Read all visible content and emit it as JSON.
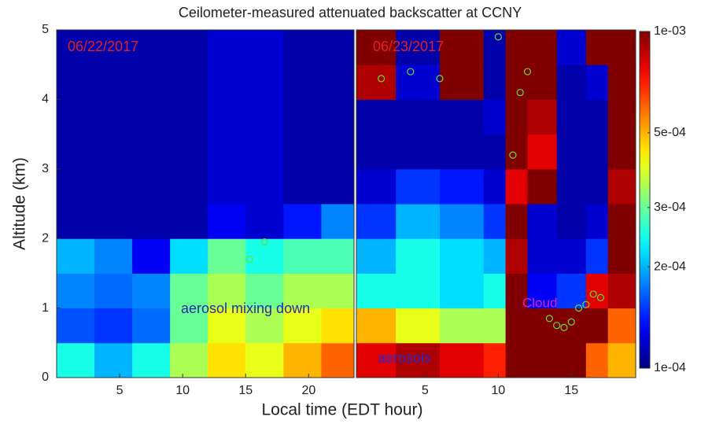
{
  "chart_data": {
    "type": "heatmap",
    "title": "Ceilometer-measured attenuated backscatter at CCNY",
    "xlabel": "Local time  (EDT hour)",
    "ylabel": "Altitude (km)",
    "ylim": [
      0,
      5
    ],
    "yticks": [
      0,
      1,
      2,
      3,
      4,
      5
    ],
    "ybins": [
      0,
      0.5,
      1,
      1.5,
      2,
      2.5,
      3,
      3.5,
      4,
      4.5,
      5
    ],
    "log_color_scale": true,
    "colormap": "jet",
    "colorbar": {
      "lim": [
        0.0001,
        0.001
      ],
      "ticks": [
        {
          "value": 0.001,
          "label": "1e-03"
        },
        {
          "value": 0.0005,
          "label": "5e-04"
        },
        {
          "value": 0.0003,
          "label": "3e-04"
        },
        {
          "value": 0.0002,
          "label": "2e-04"
        },
        {
          "value": 0.0001,
          "label": "1e-04"
        }
      ]
    },
    "panels": [
      {
        "label": "06/22/2017",
        "xlim": [
          0,
          23.6
        ],
        "xticks": [
          5,
          10,
          15,
          20
        ],
        "xbins": [
          0,
          3,
          6,
          9,
          12,
          15,
          18,
          21,
          23.6
        ],
        "values": [
          [
            0.00025,
            0.0002,
            0.00025,
            0.00035,
            0.00045,
            0.0004,
            0.0005,
            0.0006
          ],
          [
            0.00016,
            0.00015,
            0.00017,
            0.0003,
            0.0004,
            0.00035,
            0.0004,
            0.00045
          ],
          [
            0.00018,
            0.00017,
            0.00018,
            0.0003,
            0.00035,
            0.0003,
            0.00035,
            0.00035
          ],
          [
            0.0002,
            0.00018,
            0.00013,
            0.00022,
            0.0003,
            0.00025,
            0.00028,
            0.00028
          ],
          [
            0.00011,
            0.00011,
            0.00011,
            0.00011,
            0.00013,
            0.00012,
            0.00014,
            0.00018
          ],
          [
            0.00011,
            0.00011,
            0.00011,
            0.00011,
            0.00012,
            0.00012,
            0.00011,
            0.00011
          ],
          [
            0.00011,
            0.00011,
            0.00011,
            0.00011,
            0.00012,
            0.00012,
            0.00011,
            0.00011
          ],
          [
            0.00011,
            0.00011,
            0.00011,
            0.00011,
            0.00012,
            0.00012,
            0.00011,
            0.00011
          ],
          [
            0.00011,
            0.00011,
            0.00011,
            0.00011,
            0.00012,
            0.00012,
            0.00011,
            0.00011
          ],
          [
            0.00011,
            0.00011,
            0.00011,
            0.00011,
            0.00012,
            0.00012,
            0.00011,
            0.00011
          ]
        ],
        "points": {
          "color": "#66dd33",
          "x": [
            15.3,
            16.5
          ],
          "y": [
            1.7,
            1.95
          ]
        }
      },
      {
        "label": "06/23/2017",
        "xlim": [
          0.3,
          19.4
        ],
        "xticks": [
          5,
          10,
          15
        ],
        "xbins": [
          0.3,
          3,
          6,
          9,
          10.5,
          12,
          14,
          16,
          17.5,
          19.4
        ],
        "values": [
          [
            0.0008,
            0.0009,
            0.0008,
            0.0007,
            0.001,
            0.001,
            0.001,
            0.0006,
            0.0005
          ],
          [
            0.0005,
            0.0004,
            0.00035,
            0.00035,
            0.001,
            0.001,
            0.001,
            0.001,
            0.0006
          ],
          [
            0.00025,
            0.00025,
            0.00022,
            0.00025,
            0.001,
            0.00013,
            0.00015,
            0.0008,
            0.0009
          ],
          [
            0.0002,
            0.00025,
            0.00022,
            0.0002,
            0.0009,
            0.00012,
            0.00012,
            0.00015,
            0.001
          ],
          [
            0.00015,
            0.0002,
            0.00018,
            0.00015,
            0.001,
            0.00012,
            0.00011,
            0.00012,
            0.001
          ],
          [
            0.00012,
            0.00015,
            0.00014,
            0.00012,
            0.0008,
            0.001,
            0.00011,
            0.00011,
            0.0009
          ],
          [
            0.00011,
            0.00011,
            0.00011,
            0.00011,
            0.001,
            0.0008,
            0.00011,
            0.00011,
            0.001
          ],
          [
            0.00011,
            0.00011,
            0.00011,
            0.00012,
            0.001,
            0.0009,
            0.00011,
            0.00011,
            0.001
          ],
          [
            0.0009,
            0.00012,
            0.001,
            0.00011,
            0.001,
            0.001,
            0.00011,
            0.00012,
            0.001
          ],
          [
            0.001,
            0.00011,
            0.001,
            0.00011,
            0.001,
            0.001,
            0.00012,
            0.001,
            0.001
          ]
        ],
        "points": {
          "color": "#66dd33",
          "x": [
            13.5,
            14,
            14.5,
            15,
            15.5,
            16,
            16.5,
            17,
            11,
            11.5,
            12,
            10,
            2,
            4,
            6
          ],
          "y": [
            0.85,
            0.75,
            0.72,
            0.8,
            1.0,
            1.05,
            1.2,
            1.15,
            3.2,
            4.1,
            4.4,
            4.9,
            4.3,
            4.4,
            4.3
          ]
        }
      }
    ],
    "annotations": [
      {
        "text": "06/22/2017",
        "color": "#e0202a"
      },
      {
        "text": "06/23/2017",
        "color": "#e0202a"
      },
      {
        "text": "aerosol mixing down",
        "color": "#2a2aa8"
      },
      {
        "text": "aerosols",
        "color": "#2a2ad0"
      },
      {
        "text": "Cloud",
        "color": "#e020c8"
      }
    ]
  }
}
